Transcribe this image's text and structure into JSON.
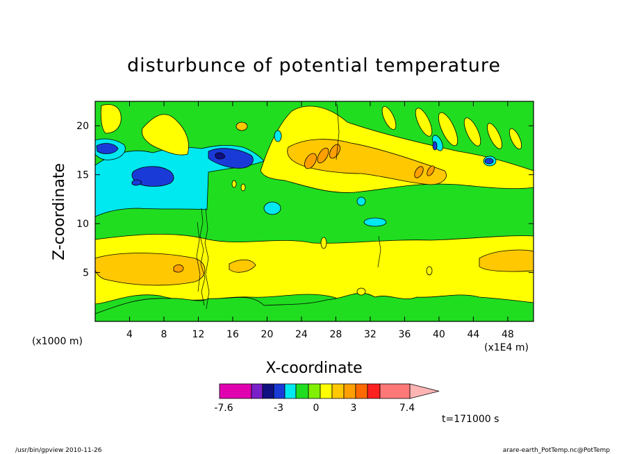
{
  "chart_data": {
    "type": "heatmap",
    "title": "disturbunce of potential temperature",
    "xlabel": "X-coordinate",
    "ylabel": "Z-coordinate",
    "x_unit_label": "(x1000 m)",
    "x_scale_label": "(x1E4 m)",
    "xlim": [
      0,
      51
    ],
    "ylim": [
      0,
      22.5
    ],
    "x_ticks": [
      4,
      8,
      12,
      16,
      20,
      24,
      28,
      32,
      36,
      40,
      44,
      48
    ],
    "y_ticks": [
      5,
      10,
      15,
      20
    ],
    "colorbar": {
      "colors": [
        "#e000b0",
        "#7a20c8",
        "#101080",
        "#1a3ad8",
        "#00e8f0",
        "#20dd20",
        "#80f000",
        "#ffff00",
        "#ffc800",
        "#ffa000",
        "#ff6a00",
        "#ff2020",
        "#ff7878",
        "#ffb4b4"
      ],
      "tick_labels": [
        "-7.6",
        "-3",
        "0",
        "3",
        "7.4"
      ]
    },
    "time_label": "t=171000 s"
  },
  "footer": {
    "left": "/usr/bin/gpview   2010-11-26",
    "right": "arare-earth_PotTemp.nc@PotTemp"
  }
}
